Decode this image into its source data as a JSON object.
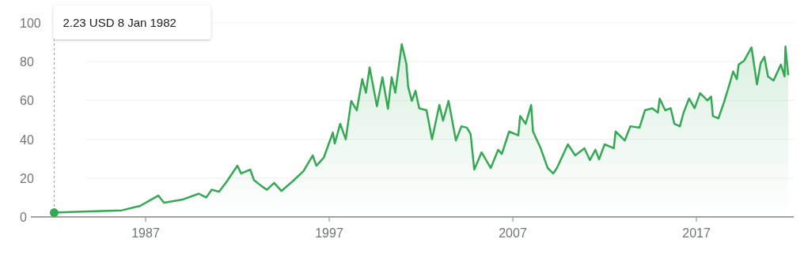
{
  "chart_data": {
    "type": "area",
    "x": [
      1982.02,
      1983.6,
      1985.7,
      1986.7,
      1987.7,
      1988.0,
      1989.0,
      1989.9,
      1990.3,
      1990.6,
      1991.0,
      1991.4,
      1992.0,
      1992.2,
      1992.7,
      1992.9,
      1993.3,
      1993.6,
      1994.0,
      1994.4,
      1995.0,
      1995.6,
      1996.1,
      1996.3,
      1996.7,
      1997.2,
      1997.3,
      1997.6,
      1997.9,
      1998.2,
      1998.5,
      1998.8,
      1999.0,
      1999.2,
      1999.6,
      1999.9,
      2000.2,
      2000.4,
      2000.6,
      2000.95,
      2001.2,
      2001.3,
      2001.5,
      2001.7,
      2001.9,
      2002.3,
      2002.6,
      2003.0,
      2003.2,
      2003.5,
      2003.9,
      2004.2,
      2004.5,
      2004.7,
      2004.9,
      2005.3,
      2005.8,
      2006.2,
      2006.4,
      2006.8,
      2007.3,
      2007.4,
      2007.7,
      2008.0,
      2008.1,
      2008.5,
      2008.9,
      2009.2,
      2009.4,
      2010.0,
      2010.4,
      2010.9,
      2011.2,
      2011.5,
      2011.7,
      2012.0,
      2012.5,
      2012.6,
      2013.1,
      2013.4,
      2013.9,
      2014.2,
      2014.6,
      2014.9,
      2015.0,
      2015.3,
      2015.6,
      2015.8,
      2016.1,
      2016.3,
      2016.6,
      2016.9,
      2017.2,
      2017.6,
      2017.8,
      2017.9,
      2018.2,
      2018.5,
      2018.8,
      2019.0,
      2019.2,
      2019.3,
      2019.6,
      2020.0,
      2020.3,
      2020.5,
      2020.7,
      2020.9,
      2021.2,
      2021.6,
      2021.8,
      2021.85,
      2022.0
    ],
    "series": [
      {
        "color": "#34a853",
        "values": [
          2.23,
          2.7,
          3.4,
          5.7,
          11,
          7.3,
          8.9,
          12,
          10,
          14,
          13,
          18,
          26.4,
          22.4,
          24.4,
          19,
          16,
          14,
          17.5,
          13.4,
          18.3,
          23.6,
          31.7,
          26.4,
          30.5,
          43.5,
          37.8,
          48,
          40,
          59.8,
          54.9,
          71,
          64,
          77,
          57,
          72,
          55.7,
          72,
          64,
          89,
          79,
          67,
          59.8,
          65,
          56,
          55,
          40,
          57.7,
          49.6,
          59.8,
          39.4,
          46.7,
          46,
          42.7,
          24.4,
          33.3,
          25.2,
          34.6,
          32.5,
          44,
          42,
          52,
          48,
          57.7,
          44,
          35.8,
          25.2,
          22.4,
          25.2,
          37.4,
          31.7,
          35.4,
          29.3,
          34.6,
          29.7,
          37.4,
          35.4,
          44,
          39.4,
          46.7,
          46,
          55,
          56,
          53.7,
          61,
          55,
          56,
          48,
          46.7,
          53.7,
          61,
          56,
          63.8,
          60,
          62,
          52,
          50.8,
          59,
          68.3,
          75,
          71,
          78.5,
          80.5,
          87.4,
          68.3,
          79.3,
          82.5,
          72.4,
          70.3,
          78.5,
          72.4,
          87.8,
          73
        ]
      }
    ],
    "xlim": [
      1980.75,
      2022.3
    ],
    "xticks": [
      1987,
      1997,
      2007,
      2017
    ],
    "ylim": [
      0,
      100
    ],
    "yticks": [
      0,
      20,
      40,
      60,
      80,
      100
    ],
    "grid": "y",
    "ref_lines": [
      {
        "axis": "x",
        "value": 1982.02,
        "color": "#9e9e9e",
        "line_style": "dashed"
      }
    ],
    "annotations": [
      "2.23 USD 8 Jan 1982"
    ]
  }
}
